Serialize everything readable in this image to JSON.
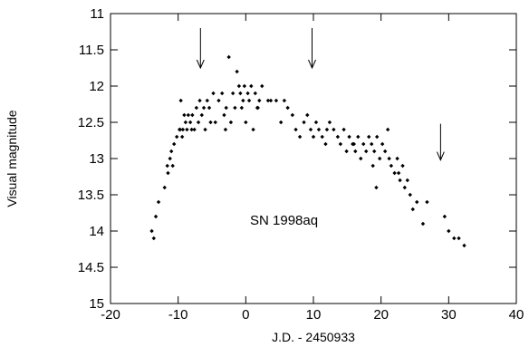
{
  "chart_data": {
    "type": "scatter",
    "title": "",
    "xlabel": "J.D. - 2450933",
    "ylabel": "Visual magnitude",
    "xlim": [
      -20,
      40
    ],
    "ylim": [
      15,
      11
    ],
    "y_inverted": true,
    "grid": false,
    "legend": "none",
    "x_ticks": [
      "-20",
      "-10",
      "0",
      "10",
      "20",
      "30",
      "40"
    ],
    "y_ticks": [
      "11",
      "11.5",
      "12",
      "12.5",
      "13",
      "13.5",
      "14",
      "14.5",
      "15"
    ],
    "annotation": "SN 1998aq",
    "arrows_x": [
      -6.7,
      9.8,
      28.8
    ],
    "series": [
      {
        "marker_color": "#000000",
        "points": [
          [
            -13.9,
            14.0
          ],
          [
            -13.6,
            14.1
          ],
          [
            -13.3,
            13.8
          ],
          [
            -12.9,
            13.6
          ],
          [
            -12.0,
            13.4
          ],
          [
            -11.6,
            13.1
          ],
          [
            -11.5,
            13.2
          ],
          [
            -11.2,
            13.0
          ],
          [
            -11.0,
            12.9
          ],
          [
            -10.8,
            13.1
          ],
          [
            -10.6,
            12.8
          ],
          [
            -10.2,
            12.7
          ],
          [
            -9.8,
            12.6
          ],
          [
            -9.6,
            12.2
          ],
          [
            -9.4,
            12.7
          ],
          [
            -9.3,
            12.6
          ],
          [
            -9.1,
            12.4
          ],
          [
            -8.9,
            12.5
          ],
          [
            -8.7,
            12.6
          ],
          [
            -8.5,
            12.4
          ],
          [
            -8.2,
            12.5
          ],
          [
            -7.9,
            12.4
          ],
          [
            -7.6,
            12.6
          ],
          [
            -7.3,
            12.3
          ],
          [
            -7.0,
            12.5
          ],
          [
            -6.8,
            12.2
          ],
          [
            -6.5,
            12.4
          ],
          [
            -6.2,
            12.3
          ],
          [
            -6.0,
            12.6
          ],
          [
            -5.7,
            12.2
          ],
          [
            -5.4,
            12.3
          ],
          [
            -4.8,
            12.1
          ],
          [
            -4.5,
            12.5
          ],
          [
            -4.0,
            12.2
          ],
          [
            -3.5,
            12.1
          ],
          [
            -3.2,
            12.4
          ],
          [
            -2.9,
            12.3
          ],
          [
            -2.5,
            11.6
          ],
          [
            -2.2,
            12.5
          ],
          [
            -1.9,
            12.1
          ],
          [
            -1.6,
            12.3
          ],
          [
            -1.3,
            11.8
          ],
          [
            -1.0,
            12.0
          ],
          [
            -0.8,
            12.1
          ],
          [
            -0.6,
            12.3
          ],
          [
            -0.4,
            12.2
          ],
          [
            -0.2,
            12.0
          ],
          [
            0.0,
            12.5
          ],
          [
            0.3,
            12.1
          ],
          [
            0.5,
            12.2
          ],
          [
            0.8,
            12.0
          ],
          [
            1.1,
            12.6
          ],
          [
            1.4,
            12.1
          ],
          [
            1.7,
            12.3
          ],
          [
            2.0,
            12.2
          ],
          [
            2.4,
            12.0
          ],
          [
            3.3,
            12.2
          ],
          [
            3.7,
            12.2
          ],
          [
            4.5,
            12.2
          ],
          [
            5.2,
            12.5
          ],
          [
            5.7,
            12.2
          ],
          [
            6.2,
            12.3
          ],
          [
            6.9,
            12.4
          ],
          [
            7.4,
            12.6
          ],
          [
            8.0,
            12.7
          ],
          [
            8.6,
            12.5
          ],
          [
            9.1,
            12.4
          ],
          [
            9.6,
            12.6
          ],
          [
            10.0,
            12.7
          ],
          [
            10.4,
            12.5
          ],
          [
            10.8,
            12.6
          ],
          [
            11.3,
            12.7
          ],
          [
            11.8,
            12.8
          ],
          [
            12.4,
            12.5
          ],
          [
            13.0,
            12.6
          ],
          [
            13.6,
            12.7
          ],
          [
            14.0,
            12.8
          ],
          [
            14.5,
            12.6
          ],
          [
            14.9,
            12.9
          ],
          [
            15.3,
            12.7
          ],
          [
            15.8,
            12.8
          ],
          [
            16.2,
            12.9
          ],
          [
            16.6,
            12.7
          ],
          [
            17.0,
            13.0
          ],
          [
            17.4,
            12.8
          ],
          [
            17.8,
            12.9
          ],
          [
            18.2,
            12.7
          ],
          [
            18.6,
            12.8
          ],
          [
            19.0,
            12.9
          ],
          [
            19.4,
            12.7
          ],
          [
            19.8,
            13.0
          ],
          [
            20.2,
            12.8
          ],
          [
            20.6,
            12.9
          ],
          [
            21.0,
            12.6
          ],
          [
            21.5,
            13.1
          ],
          [
            22.0,
            13.2
          ],
          [
            22.4,
            13.0
          ],
          [
            22.8,
            13.3
          ],
          [
            23.2,
            13.1
          ],
          [
            23.5,
            13.4
          ],
          [
            23.9,
            13.3
          ],
          [
            24.3,
            13.5
          ],
          [
            24.7,
            13.7
          ],
          [
            25.3,
            13.6
          ],
          [
            26.2,
            13.9
          ],
          [
            26.8,
            13.6
          ],
          [
            29.4,
            13.8
          ],
          [
            30.0,
            14.0
          ],
          [
            30.8,
            14.1
          ],
          [
            31.5,
            14.1
          ],
          [
            32.3,
            14.2
          ],
          [
            -9.7,
            12.6
          ],
          [
            -8.0,
            12.6
          ],
          [
            -5.2,
            12.5
          ],
          [
            -3.0,
            12.6
          ],
          [
            1.8,
            12.3
          ],
          [
            12.0,
            12.6
          ],
          [
            16.0,
            12.8
          ],
          [
            18.8,
            13.1
          ],
          [
            21.2,
            13.0
          ],
          [
            19.3,
            13.4
          ],
          [
            22.6,
            13.2
          ]
        ]
      }
    ]
  }
}
